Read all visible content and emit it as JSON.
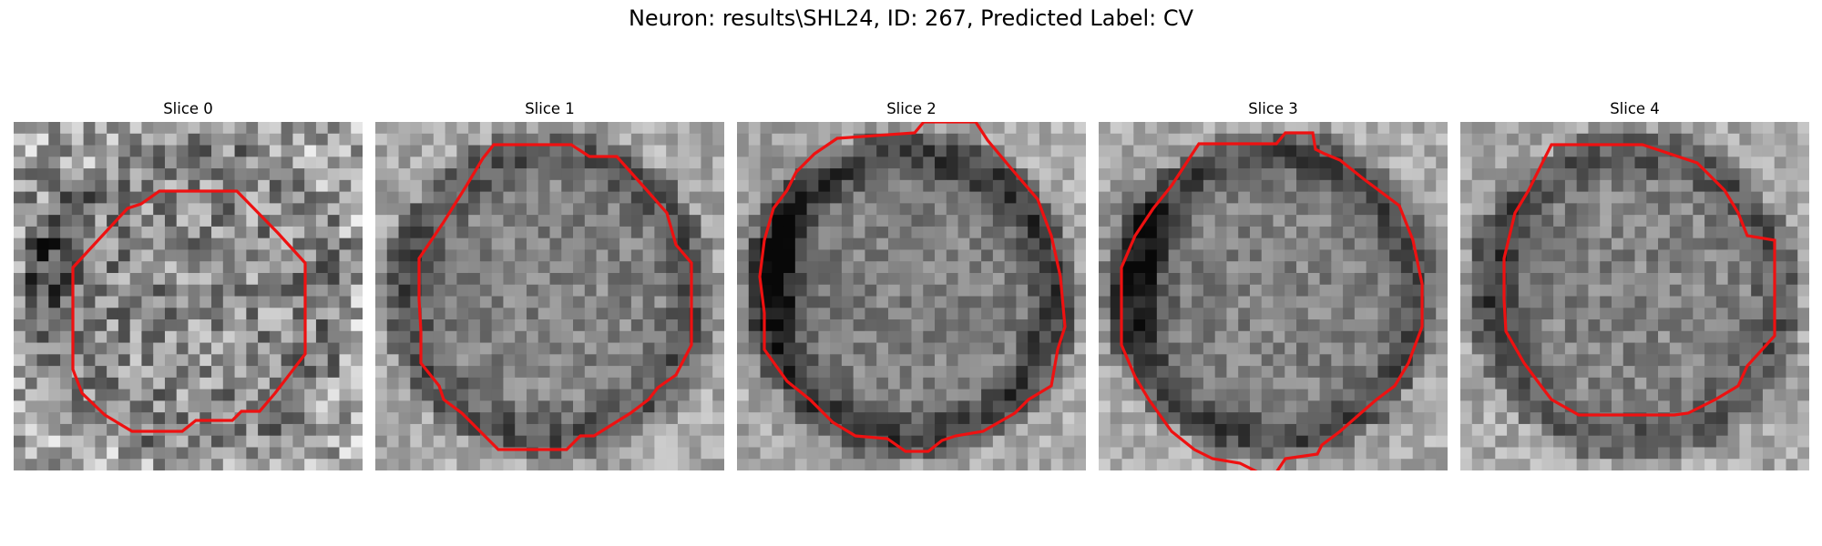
{
  "title": "Neuron: results\\SHL24, ID: 267, Predicted Label: CV",
  "contour_color": "#ee1111",
  "panels": [
    {
      "title": "Slice 0",
      "seed": 11,
      "ring_strength": 0.1,
      "noise": 0.55,
      "left_dark": 0.45
    },
    {
      "title": "Slice 1",
      "seed": 23,
      "ring_strength": 0.45,
      "noise": 0.3,
      "left_dark": 0.1
    },
    {
      "title": "Slice 2",
      "seed": 37,
      "ring_strength": 0.65,
      "noise": 0.28,
      "left_dark": 0.5
    },
    {
      "title": "Slice 3",
      "seed": 41,
      "ring_strength": 0.55,
      "noise": 0.28,
      "left_dark": 0.45
    },
    {
      "title": "Slice 4",
      "seed": 53,
      "ring_strength": 0.45,
      "noise": 0.3,
      "left_dark": 0.2
    }
  ]
}
